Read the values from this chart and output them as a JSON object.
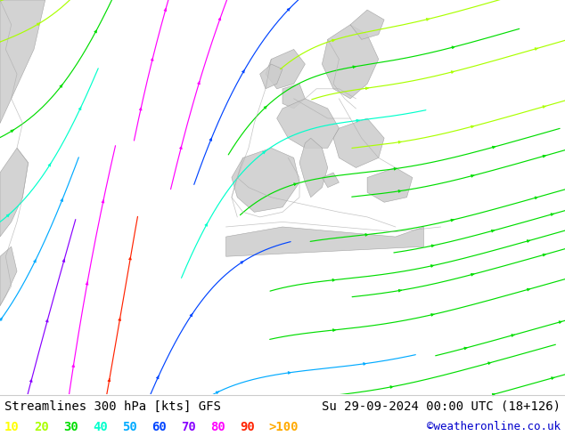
{
  "title_left": "Streamlines 300 hPa [kts] GFS",
  "title_right": "Su 29-09-2024 00:00 UTC (18+126)",
  "copyright": "©weatheronline.co.uk",
  "legend_values": [
    "10",
    "20",
    "30",
    "40",
    "50",
    "60",
    "70",
    "80",
    "90",
    ">100"
  ],
  "legend_colors": [
    "#ffff00",
    "#aaff00",
    "#00dd00",
    "#00ffcc",
    "#00aaff",
    "#0044ff",
    "#8800ff",
    "#ff00ff",
    "#ff2200",
    "#ffaa00"
  ],
  "bg_color_sea": "#ccffcc",
  "bg_color_land": "#dddddd",
  "title_fontsize": 10,
  "legend_fontsize": 10,
  "copyright_color": "#0000cc",
  "figsize": [
    6.34,
    4.9
  ],
  "dpi": 100,
  "speed_colors": [
    "#ffff00",
    "#aaff00",
    "#00dd00",
    "#00ffcc",
    "#00aaff",
    "#0044ff",
    "#8800ff",
    "#ff00ff",
    "#ff2200",
    "#ffaa00"
  ],
  "speed_thresholds": [
    10,
    20,
    30,
    40,
    50,
    60,
    70,
    80,
    90,
    100
  ]
}
